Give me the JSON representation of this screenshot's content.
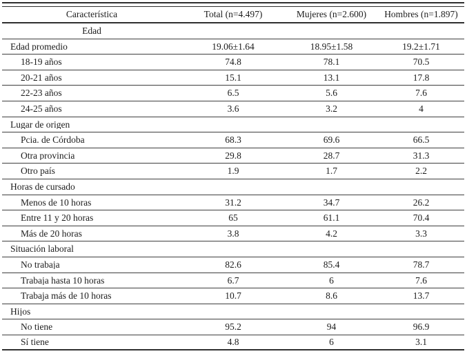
{
  "table": {
    "columns": [
      "Característica",
      "Total (n=4.497)",
      "Mujeres (n=2.600)",
      "Hombres (n=1.897)"
    ],
    "rows": [
      {
        "type": "section-center",
        "indent": 0,
        "label": "Edad",
        "values": [
          "",
          "",
          ""
        ]
      },
      {
        "type": "data",
        "indent": 0,
        "label": "Edad promedio",
        "values": [
          "19.06±1.64",
          "18.95±1.58",
          "19.2±1.71"
        ]
      },
      {
        "type": "data",
        "indent": 1,
        "label": "18-19 años",
        "values": [
          "74.8",
          "78.1",
          "70.5"
        ]
      },
      {
        "type": "data",
        "indent": 1,
        "label": "20-21 años",
        "values": [
          "15.1",
          "13.1",
          "17.8"
        ]
      },
      {
        "type": "data",
        "indent": 1,
        "label": "22-23 años",
        "values": [
          "6.5",
          "5.6",
          "7.6"
        ]
      },
      {
        "type": "data",
        "indent": 1,
        "label": "24-25 años",
        "values": [
          "3.6",
          "3.2",
          "4"
        ]
      },
      {
        "type": "section",
        "indent": 0,
        "label": "Lugar de origen",
        "values": [
          "",
          "",
          ""
        ]
      },
      {
        "type": "data",
        "indent": 1,
        "label": "Pcia. de Córdoba",
        "values": [
          "68.3",
          "69.6",
          "66.5"
        ]
      },
      {
        "type": "data",
        "indent": 1,
        "label": "Otra provincia",
        "values": [
          "29.8",
          "28.7",
          "31.3"
        ]
      },
      {
        "type": "data",
        "indent": 1,
        "label": "Otro país",
        "values": [
          "1.9",
          "1.7",
          "2.2"
        ]
      },
      {
        "type": "section",
        "indent": 0,
        "label": "Horas de cursado",
        "values": [
          "",
          "",
          ""
        ]
      },
      {
        "type": "data",
        "indent": 1,
        "label": "Menos de 10 horas",
        "values": [
          "31.2",
          "34.7",
          "26.2"
        ]
      },
      {
        "type": "data",
        "indent": 1,
        "label": "Entre 11 y 20 horas",
        "values": [
          "65",
          "61.1",
          "70.4"
        ]
      },
      {
        "type": "data",
        "indent": 1,
        "label": "Más de 20 horas",
        "values": [
          "3.8",
          "4.2",
          "3.3"
        ]
      },
      {
        "type": "section",
        "indent": 0,
        "label": "Situación laboral",
        "values": [
          "",
          "",
          ""
        ]
      },
      {
        "type": "data",
        "indent": 1,
        "label": "No trabaja",
        "values": [
          "82.6",
          "85.4",
          "78.7"
        ]
      },
      {
        "type": "data",
        "indent": 1,
        "label": "Trabaja hasta 10 horas",
        "values": [
          "6.7",
          "6",
          "7.6"
        ]
      },
      {
        "type": "data",
        "indent": 1,
        "label": "Trabaja más de 10 horas",
        "values": [
          "10.7",
          "8.6",
          "13.7"
        ]
      },
      {
        "type": "section",
        "indent": 0,
        "label": "Hijos",
        "values": [
          "",
          "",
          ""
        ]
      },
      {
        "type": "data",
        "indent": 1,
        "label": "No tiene",
        "values": [
          "95.2",
          "94",
          "96.9"
        ]
      },
      {
        "type": "data",
        "indent": 1,
        "label": "Sí tiene",
        "values": [
          "4.8",
          "6",
          "3.1"
        ]
      }
    ]
  }
}
